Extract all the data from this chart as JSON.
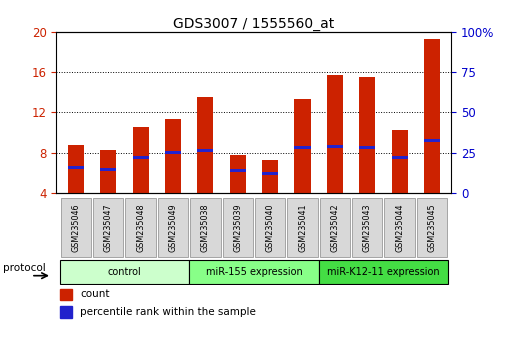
{
  "title": "GDS3007 / 1555560_at",
  "samples": [
    "GSM235046",
    "GSM235047",
    "GSM235048",
    "GSM235049",
    "GSM235038",
    "GSM235039",
    "GSM235040",
    "GSM235041",
    "GSM235042",
    "GSM235043",
    "GSM235044",
    "GSM235045"
  ],
  "count_values": [
    8.8,
    8.3,
    10.5,
    11.3,
    13.5,
    7.8,
    7.3,
    13.3,
    15.7,
    15.5,
    10.3,
    19.3
  ],
  "percentile_values": [
    6.5,
    6.3,
    7.5,
    8.0,
    8.2,
    6.2,
    5.9,
    8.5,
    8.6,
    8.5,
    7.5,
    9.2
  ],
  "ymin": 4,
  "ymax": 20,
  "yticks_left": [
    4,
    8,
    12,
    16,
    20
  ],
  "yticks_right": [
    0,
    25,
    50,
    75,
    100
  ],
  "bar_color": "#cc2200",
  "blue_color": "#2222cc",
  "plot_bg": "#ffffff",
  "groups": [
    {
      "label": "control",
      "start": 0,
      "end": 4,
      "color": "#ccffcc"
    },
    {
      "label": "miR-155 expression",
      "start": 4,
      "end": 8,
      "color": "#88ff88"
    },
    {
      "label": "miR-K12-11 expression",
      "start": 8,
      "end": 12,
      "color": "#44dd44"
    }
  ],
  "protocol_label": "protocol",
  "legend_count": "count",
  "legend_percentile": "percentile rank within the sample",
  "title_fontsize": 10,
  "axis_label_color_left": "#cc2200",
  "axis_label_color_right": "#0000cc",
  "bar_width": 0.5
}
